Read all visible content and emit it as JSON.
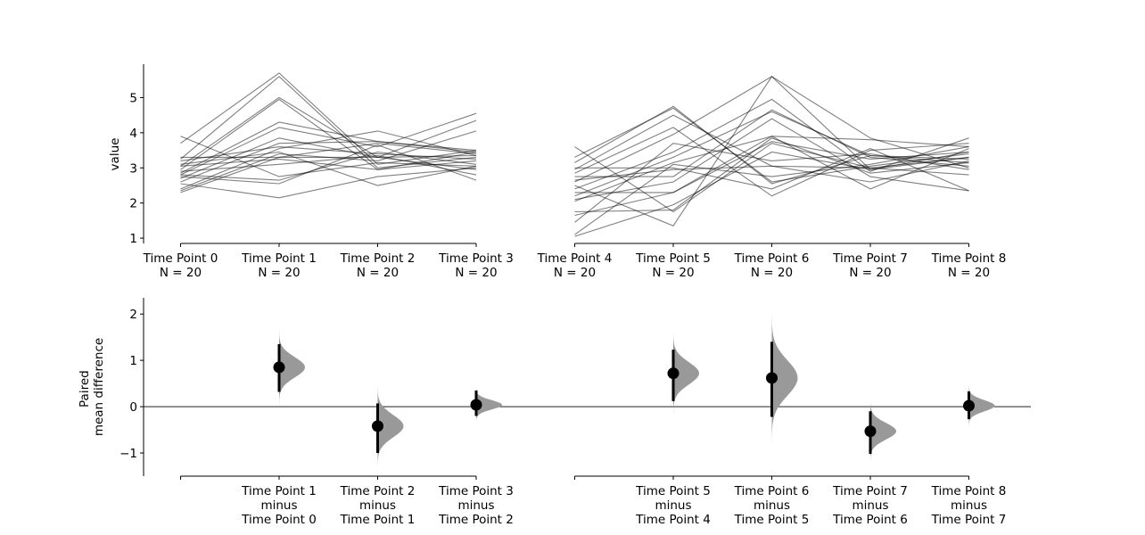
{
  "chart_data": [
    {
      "type": "line",
      "panel": "raw-data",
      "ylabel": "value",
      "ylim": [
        0.85,
        5.95
      ],
      "yticks": [
        1,
        2,
        3,
        4,
        5
      ],
      "series_color": "#000000",
      "series_opacity": 0.5,
      "groups": [
        {
          "categories": [
            "Time Point 0",
            "Time Point 1",
            "Time Point 2",
            "Time Point 3"
          ],
          "n_labels": [
            "N = 20",
            "N = 20",
            "N = 20",
            "N = 20"
          ],
          "lines": [
            [
              3.9,
              2.75,
              3.15,
              3.05
            ],
            [
              3.7,
              5.7,
              3.1,
              3.5
            ],
            [
              3.25,
              5.6,
              3.0,
              3.3
            ],
            [
              3.05,
              5.0,
              3.3,
              2.95
            ],
            [
              2.95,
              4.95,
              2.95,
              3.45
            ],
            [
              2.85,
              4.3,
              3.75,
              3.5
            ],
            [
              2.8,
              4.15,
              3.6,
              4.55
            ],
            [
              2.7,
              3.85,
              3.3,
              4.35
            ],
            [
              2.6,
              3.7,
              3.75,
              3.45
            ],
            [
              2.4,
              3.55,
              4.05,
              3.35
            ],
            [
              2.35,
              3.4,
              3.2,
              4.05
            ],
            [
              3.1,
              3.45,
              2.5,
              3.05
            ],
            [
              2.3,
              3.3,
              3.7,
              3.4
            ],
            [
              3.3,
              3.3,
              3.3,
              3.35
            ],
            [
              3.05,
              3.25,
              2.95,
              3.2
            ],
            [
              2.55,
              2.15,
              2.75,
              3.0
            ],
            [
              2.75,
              2.55,
              3.65,
              2.65
            ],
            [
              2.8,
              2.65,
              3.45,
              3.1
            ],
            [
              2.9,
              3.1,
              3.35,
              2.8
            ],
            [
              3.2,
              3.6,
              3.4,
              3.25
            ]
          ]
        },
        {
          "categories": [
            "Time Point 4",
            "Time Point 5",
            "Time Point 6",
            "Time Point 7",
            "Time Point 8"
          ],
          "n_labels": [
            "N = 20",
            "N = 20",
            "N = 20",
            "N = 20",
            "N = 20"
          ],
          "lines": [
            [
              3.6,
              1.75,
              3.7,
              3.0,
              3.3
            ],
            [
              3.3,
              4.7,
              2.6,
              3.05,
              3.4
            ],
            [
              3.15,
              4.75,
              2.55,
              3.35,
              3.15
            ],
            [
              2.95,
              4.5,
              3.05,
              3.0,
              2.8
            ],
            [
              2.85,
              4.15,
              2.2,
              3.5,
              3.7
            ],
            [
              2.6,
              3.95,
              5.6,
              3.85,
              3.0
            ],
            [
              2.5,
              1.35,
              5.6,
              2.95,
              3.45
            ],
            [
              2.4,
              3.45,
              4.95,
              2.9,
              3.85
            ],
            [
              2.2,
              3.3,
              4.6,
              3.35,
              3.25
            ],
            [
              2.1,
              2.6,
              4.4,
              2.75,
              2.35
            ],
            [
              2.05,
              3.15,
              3.9,
              2.4,
              3.55
            ],
            [
              1.75,
              1.8,
              3.85,
              2.85,
              3.15
            ],
            [
              1.65,
              2.3,
              3.75,
              3.25,
              3.45
            ],
            [
              1.45,
              3.7,
              3.2,
              3.4,
              2.95
            ],
            [
              1.1,
              3.1,
              2.75,
              3.1,
              3.6
            ],
            [
              1.05,
              1.95,
              3.45,
              2.95,
              3.3
            ],
            [
              3.0,
              3.0,
              2.4,
              3.55,
              2.35
            ],
            [
              2.75,
              2.75,
              4.65,
              3.3,
              3.05
            ],
            [
              2.65,
              2.95,
              3.05,
              2.6,
              3.2
            ],
            [
              2.3,
              2.3,
              3.9,
              3.8,
              3.6
            ]
          ]
        }
      ]
    },
    {
      "type": "estimation",
      "panel": "paired-mean-difference",
      "ylabel_lines": [
        "Paired",
        "mean difference"
      ],
      "ylim": [
        -1.5,
        2.35
      ],
      "yticks": [
        -1,
        0,
        1,
        2
      ],
      "ytick_labels": [
        "−1",
        "0",
        "1",
        "2"
      ],
      "zero_line": true,
      "dist_color": "#999999",
      "groups": [
        {
          "baseline_category": "Time Point 0",
          "comparisons": [
            {
              "label": [
                "Time Point 1",
                "minus",
                "Time Point 0"
              ],
              "mean": 0.85,
              "ci": [
                0.32,
                1.35
              ],
              "dist_range": [
                0.0,
                1.7
              ],
              "dist_sd": 0.22
            },
            {
              "label": [
                "Time Point 2",
                "minus",
                "Time Point 1"
              ],
              "mean": -0.42,
              "ci": [
                -1.0,
                0.07
              ],
              "dist_range": [
                -1.35,
                0.45
              ],
              "dist_sd": 0.24
            },
            {
              "label": [
                "Time Point 3",
                "minus",
                "Time Point 2"
              ],
              "mean": 0.04,
              "ci": [
                -0.2,
                0.35
              ],
              "dist_range": [
                -0.3,
                0.45
              ],
              "dist_sd": 0.1
            }
          ]
        },
        {
          "baseline_category": "Time Point 4",
          "comparisons": [
            {
              "label": [
                "Time Point 5",
                "minus",
                "Time Point 4"
              ],
              "mean": 0.72,
              "ci": [
                0.12,
                1.23
              ],
              "dist_range": [
                -0.35,
                1.65
              ],
              "dist_sd": 0.24
            },
            {
              "label": [
                "Time Point 6",
                "minus",
                "Time Point 5"
              ],
              "mean": 0.62,
              "ci": [
                -0.22,
                1.4
              ],
              "dist_range": [
                -0.95,
                2.15
              ],
              "dist_sd": 0.38
            },
            {
              "label": [
                "Time Point 7",
                "minus",
                "Time Point 6"
              ],
              "mean": -0.53,
              "ci": [
                -1.02,
                -0.1
              ],
              "dist_range": [
                -1.35,
                0.18
              ],
              "dist_sd": 0.18
            },
            {
              "label": [
                "Time Point 8",
                "minus",
                "Time Point 7"
              ],
              "mean": 0.02,
              "ci": [
                -0.27,
                0.33
              ],
              "dist_range": [
                -0.4,
                0.5
              ],
              "dist_sd": 0.12
            }
          ]
        }
      ]
    }
  ]
}
